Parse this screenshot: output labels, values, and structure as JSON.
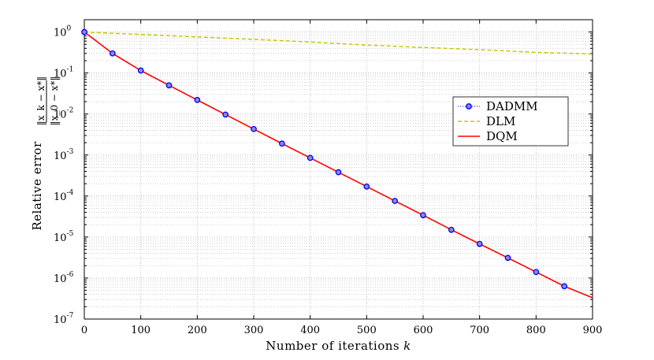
{
  "chart_data": {
    "type": "line",
    "yscale": "log",
    "xlabel": "Number of iterations",
    "xlabel_var": "k",
    "ylabel": "Relative error",
    "ylabel_fraction": {
      "numerator": "‖x_k − x*‖",
      "denominator": "‖x_0 − x*‖"
    },
    "xlim": [
      0,
      900
    ],
    "ylim": [
      1e-07,
      2
    ],
    "grid": true,
    "legend_position": "right",
    "x_ticks": [
      "0",
      "100",
      "200",
      "300",
      "400",
      "500",
      "600",
      "700",
      "800",
      "900"
    ],
    "y_ticks": [
      {
        "base": "10",
        "exp": "0"
      },
      {
        "base": "10",
        "exp": "-1"
      },
      {
        "base": "10",
        "exp": "-2"
      },
      {
        "base": "10",
        "exp": "-3"
      },
      {
        "base": "10",
        "exp": "-4"
      },
      {
        "base": "10",
        "exp": "-5"
      },
      {
        "base": "10",
        "exp": "-6"
      },
      {
        "base": "10",
        "exp": "-7"
      }
    ],
    "series": [
      {
        "name": "DADMM",
        "style": "dotted-markers",
        "color": "#0000ff",
        "x": [
          0,
          50,
          100,
          150,
          200,
          250,
          300,
          350,
          400,
          450,
          500,
          550,
          600,
          650,
          700,
          750,
          800,
          850
        ],
        "y": [
          1.0,
          0.3,
          0.115,
          0.05,
          0.022,
          0.0097,
          0.0043,
          0.0019,
          0.00085,
          0.00038,
          0.00017,
          7.6e-05,
          3.4e-05,
          1.5e-05,
          6.8e-06,
          3.1e-06,
          1.4e-06,
          6.3e-07
        ]
      },
      {
        "name": "DLM",
        "style": "dashed",
        "color": "#c8c800",
        "x": [
          0,
          100,
          200,
          300,
          400,
          500,
          600,
          700,
          800,
          900
        ],
        "y": [
          1.0,
          0.87,
          0.76,
          0.66,
          0.57,
          0.48,
          0.42,
          0.37,
          0.32,
          0.29
        ]
      },
      {
        "name": "DQM",
        "style": "solid",
        "color": "#ff0000",
        "x": [
          0,
          25,
          50,
          100,
          150,
          200,
          250,
          300,
          350,
          400,
          450,
          500,
          550,
          600,
          650,
          700,
          750,
          800,
          850,
          900
        ],
        "y": [
          1.0,
          0.55,
          0.3,
          0.115,
          0.05,
          0.022,
          0.0097,
          0.0043,
          0.0019,
          0.00085,
          0.00038,
          0.00017,
          7.6e-05,
          3.4e-05,
          1.5e-05,
          6.8e-06,
          3.1e-06,
          1.4e-06,
          6.3e-07,
          3.3e-07
        ]
      }
    ]
  }
}
